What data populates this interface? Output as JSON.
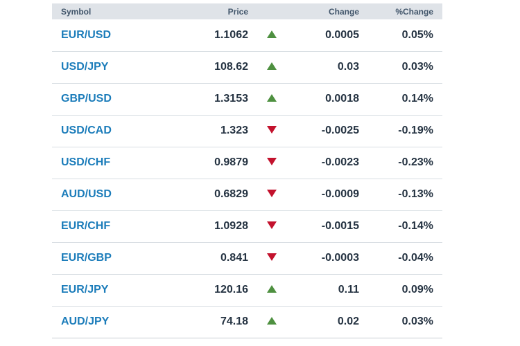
{
  "table": {
    "columns": {
      "symbol": "Symbol",
      "price": "Price",
      "change": "Change",
      "pct_change": "%Change"
    },
    "rows": [
      {
        "symbol": "EUR/USD",
        "price": "1.1062",
        "direction": "up",
        "change": "0.0005",
        "pct_change": "0.05%"
      },
      {
        "symbol": "USD/JPY",
        "price": "108.62",
        "direction": "up",
        "change": "0.03",
        "pct_change": "0.03%"
      },
      {
        "symbol": "GBP/USD",
        "price": "1.3153",
        "direction": "up",
        "change": "0.0018",
        "pct_change": "0.14%"
      },
      {
        "symbol": "USD/CAD",
        "price": "1.323",
        "direction": "down",
        "change": "-0.0025",
        "pct_change": "-0.19%"
      },
      {
        "symbol": "USD/CHF",
        "price": "0.9879",
        "direction": "down",
        "change": "-0.0023",
        "pct_change": "-0.23%"
      },
      {
        "symbol": "AUD/USD",
        "price": "0.6829",
        "direction": "down",
        "change": "-0.0009",
        "pct_change": "-0.13%"
      },
      {
        "symbol": "EUR/CHF",
        "price": "1.0928",
        "direction": "down",
        "change": "-0.0015",
        "pct_change": "-0.14%"
      },
      {
        "symbol": "EUR/GBP",
        "price": "0.841",
        "direction": "down",
        "change": "-0.0003",
        "pct_change": "-0.04%"
      },
      {
        "symbol": "EUR/JPY",
        "price": "120.16",
        "direction": "up",
        "change": "0.11",
        "pct_change": "0.09%"
      },
      {
        "symbol": "AUD/JPY",
        "price": "74.18",
        "direction": "up",
        "change": "0.02",
        "pct_change": "0.03%"
      }
    ],
    "colors": {
      "up_arrow": "#4e9040",
      "down_arrow": "#c3122d",
      "symbol_link": "#1b7cba",
      "header_bg": "#dfe3e8",
      "header_text": "#42566b",
      "value_text": "#253342",
      "row_divider": "#d7dde2"
    }
  }
}
